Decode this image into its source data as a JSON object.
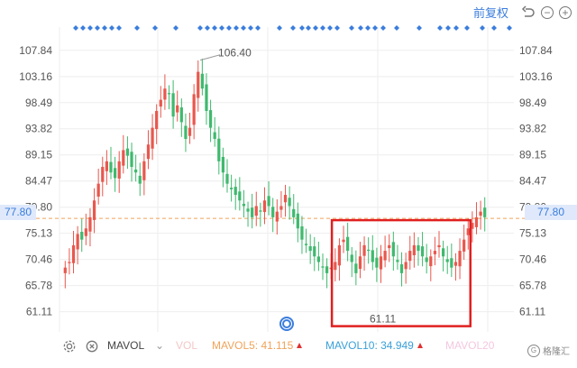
{
  "header": {
    "adjust_label": "前复权",
    "undo_icon": "undo-icon",
    "zoom_out_icon": "zoom-out-icon",
    "zoom_in_icon": "zoom-in-icon"
  },
  "current_price": {
    "left": "77.80",
    "right": "77.80"
  },
  "colors": {
    "up": "#e8584e",
    "down": "#3fb96e",
    "grid": "#eeeeee",
    "price_line": "#f0a35a",
    "highlight": "#e02020",
    "accent": "#3b7ddd"
  },
  "chart_data": {
    "type": "candlestick",
    "ylim": [
      57.5,
      112
    ],
    "y_ticks": [
      "107.84",
      "103.16",
      "98.49",
      "93.82",
      "89.15",
      "84.47",
      "79.80",
      "75.13",
      "70.46",
      "65.78",
      "61.11"
    ],
    "y_tick_values": [
      107.84,
      103.16,
      98.49,
      93.82,
      89.15,
      84.47,
      79.8,
      75.13,
      70.46,
      65.78,
      61.11
    ],
    "high_label": "106.40",
    "low_label": "61.11",
    "current_price": 77.8,
    "closes": [
      69,
      70,
      73,
      75,
      74,
      76,
      78,
      81,
      84,
      87,
      88,
      86,
      85,
      88,
      90,
      89,
      87,
      86,
      84,
      88,
      91,
      94,
      97,
      99,
      101,
      100,
      96,
      98,
      95,
      92,
      94,
      100,
      104,
      101,
      97,
      94,
      92,
      88,
      86,
      84,
      83,
      82,
      81,
      80,
      79,
      78,
      80,
      79,
      81,
      80,
      78,
      79,
      80,
      82,
      80,
      78,
      76,
      74,
      73,
      72,
      71,
      70,
      69,
      68,
      69,
      70,
      73,
      74,
      72,
      70,
      68,
      71,
      73,
      72,
      70,
      69,
      71,
      72,
      73,
      71,
      70,
      68,
      70,
      72,
      73,
      72,
      71,
      70,
      71,
      72,
      73,
      71,
      70,
      69,
      70,
      72,
      74,
      76,
      77,
      78,
      79,
      78
    ],
    "highlight_box": {
      "x_start": 66,
      "x_end": 95,
      "y_top": 77.8,
      "y_bottom": 61.11
    },
    "dots_series": "pattern"
  },
  "indicators": {
    "settings_icon": "gear-icon",
    "close_icon": "close-icon",
    "mavol": "MAVOL",
    "vol": "VOL",
    "mavol5": "MAVOL5: 41.115",
    "mavol10": "MAVOL10: 34.949",
    "mavol20": "MAVOL20"
  },
  "watermark": {
    "badge": "G",
    "text": "格隆汇"
  }
}
